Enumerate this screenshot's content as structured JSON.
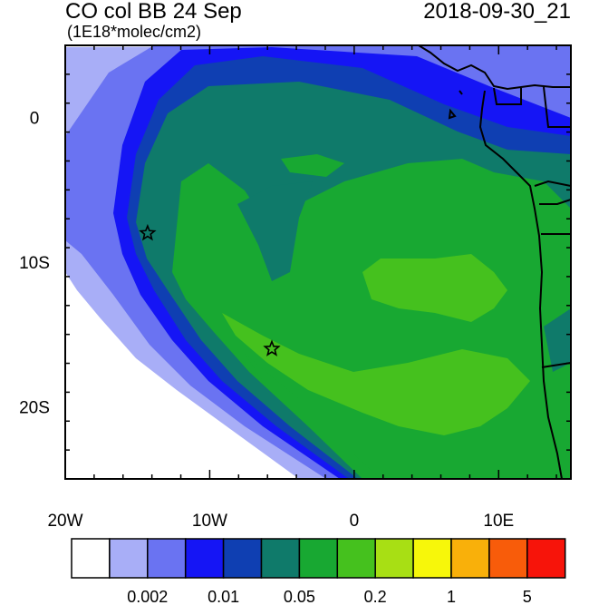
{
  "header": {
    "title": "CO col BB 24 Sep",
    "units": "(1E18*molec/cm2)",
    "datetime": "2018-09-30_21"
  },
  "axes": {
    "x_ticks": [
      {
        "value": -20,
        "label": "20W"
      },
      {
        "value": -10,
        "label": "10W"
      },
      {
        "value": 0,
        "label": "0"
      },
      {
        "value": 10,
        "label": "10E"
      }
    ],
    "y_ticks": [
      {
        "value": 0,
        "label": "0"
      },
      {
        "value": -10,
        "label": "10S"
      },
      {
        "value": -20,
        "label": "20S"
      }
    ],
    "lon_range": [
      -20,
      15
    ],
    "lat_range": [
      -25,
      5
    ]
  },
  "colorbar": {
    "colors": [
      "#ffffff",
      "#a8aef7",
      "#6a73f2",
      "#1515f5",
      "#0f3fb2",
      "#0f7a6a",
      "#18a832",
      "#45c11e",
      "#a8df14",
      "#f7f70a",
      "#f9b00a",
      "#f85c0a",
      "#f7140a"
    ],
    "labels": [
      {
        "after_box": 2,
        "text": "0.002"
      },
      {
        "after_box": 4,
        "text": "0.01"
      },
      {
        "after_box": 6,
        "text": "0.05"
      },
      {
        "after_box": 8,
        "text": "0.2"
      },
      {
        "after_box": 10,
        "text": "1"
      },
      {
        "after_box": 12,
        "text": "5"
      }
    ]
  },
  "markers": [
    {
      "name": "star-marker-1",
      "lon": -14.3,
      "lat": -8.0
    },
    {
      "name": "star-marker-2",
      "lon": -5.7,
      "lat": -16.0
    }
  ]
}
